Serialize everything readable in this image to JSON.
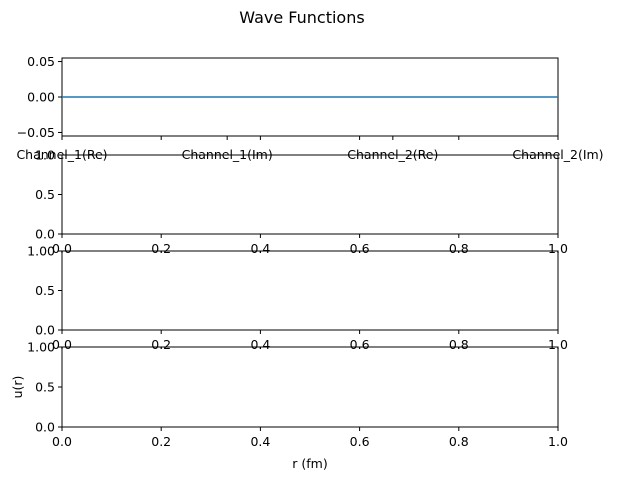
{
  "chart_data": [
    {
      "type": "line",
      "title": "Wave Functions",
      "series": [
        {
          "x": [
            0,
            1
          ],
          "y": [
            0.0,
            0.0
          ],
          "color": "#1f77b4"
        }
      ],
      "ylim": [
        -0.055,
        0.055
      ],
      "yticks": [
        "0.05",
        "0.00",
        "−0.05"
      ],
      "yticks_values": [
        0.05,
        0.0,
        -0.05
      ],
      "xticks_values": [
        0,
        0.2,
        0.4,
        0.6,
        0.8,
        1.0
      ],
      "xticks": [
        "Channel_1(Re)",
        "Channel_1(Im)",
        "Channel_2(Re)",
        "Channel_2(Im)"
      ],
      "xticks_major_values": [
        0,
        0.333,
        0.667,
        1.0
      ]
    },
    {
      "type": "line",
      "series": [],
      "xlim": [
        0,
        1
      ],
      "ylim": [
        0,
        1
      ],
      "xticks": [
        "0.0",
        "0.2",
        "0.4",
        "0.6",
        "0.8",
        "1.0"
      ],
      "yticks": [
        "0.0",
        "0.5",
        "1.0"
      ]
    },
    {
      "type": "line",
      "series": [],
      "xlim": [
        0,
        1
      ],
      "ylim": [
        0,
        1
      ],
      "xticks": [
        "0.0",
        "0.2",
        "0.4",
        "0.6",
        "0.8",
        "1.0"
      ],
      "yticks": [
        "0.0",
        "0.5",
        "1.00"
      ]
    },
    {
      "type": "line",
      "series": [],
      "xlim": [
        0,
        1
      ],
      "ylim": [
        0,
        1
      ],
      "xticks": [
        "0.0",
        "0.2",
        "0.4",
        "0.6",
        "0.8",
        "1.0"
      ],
      "yticks": [
        "0.0",
        "0.5",
        "1.00"
      ],
      "xlabel": "r (fm)",
      "ylabel": "u(r)"
    }
  ]
}
